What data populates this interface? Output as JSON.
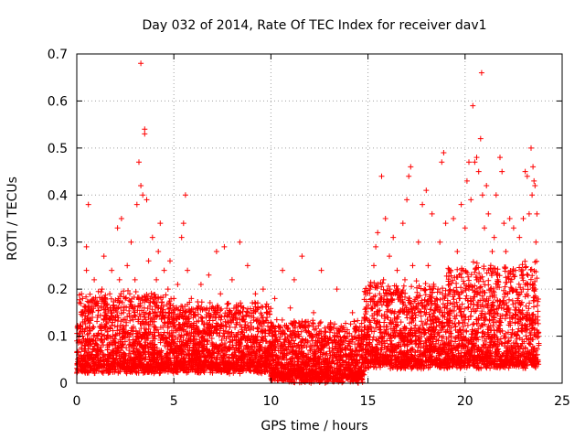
{
  "chart_data": {
    "type": "scatter",
    "title": "Day 032 of 2014, Rate Of TEC Index for receiver dav1",
    "xlabel": "GPS time / hours",
    "ylabel": "ROTI / TECUs",
    "xlim": [
      0,
      25
    ],
    "ylim": [
      0,
      0.7
    ],
    "xticks": [
      0,
      5,
      10,
      15,
      20,
      25
    ],
    "yticks": [
      0,
      0.1,
      0.2,
      0.3,
      0.4,
      0.5,
      0.6,
      0.7
    ],
    "xtick_labels": [
      "0",
      "5",
      "10",
      "15",
      "20",
      "25"
    ],
    "ytick_labels": [
      "0",
      "0.1",
      "0.2",
      "0.3",
      "0.4",
      "0.5",
      "0.6",
      "0.7"
    ],
    "grid": true,
    "marker": "+",
    "color": "#ff0000",
    "series": [
      {
        "name": "dav1",
        "points": [
          [
            0.1,
            0.06
          ],
          [
            0.2,
            0.12
          ],
          [
            0.3,
            0.18
          ],
          [
            0.4,
            0.08
          ],
          [
            0.5,
            0.24
          ],
          [
            0.5,
            0.29
          ],
          [
            0.6,
            0.38
          ],
          [
            0.7,
            0.15
          ],
          [
            0.8,
            0.05
          ],
          [
            0.9,
            0.22
          ],
          [
            1.0,
            0.1
          ],
          [
            1.1,
            0.17
          ],
          [
            1.2,
            0.07
          ],
          [
            1.3,
            0.2
          ],
          [
            1.4,
            0.27
          ],
          [
            1.5,
            0.12
          ],
          [
            1.6,
            0.06
          ],
          [
            1.7,
            0.19
          ],
          [
            1.8,
            0.24
          ],
          [
            1.9,
            0.09
          ],
          [
            2.0,
            0.14
          ],
          [
            2.1,
            0.33
          ],
          [
            2.2,
            0.22
          ],
          [
            2.3,
            0.35
          ],
          [
            2.4,
            0.11
          ],
          [
            2.5,
            0.18
          ],
          [
            2.6,
            0.25
          ],
          [
            2.7,
            0.07
          ],
          [
            2.8,
            0.3
          ],
          [
            2.9,
            0.16
          ],
          [
            3.0,
            0.22
          ],
          [
            3.1,
            0.38
          ],
          [
            3.2,
            0.47
          ],
          [
            3.3,
            0.68
          ],
          [
            3.3,
            0.42
          ],
          [
            3.4,
            0.4
          ],
          [
            3.5,
            0.54
          ],
          [
            3.5,
            0.53
          ],
          [
            3.6,
            0.39
          ],
          [
            3.7,
            0.26
          ],
          [
            3.8,
            0.18
          ],
          [
            3.9,
            0.31
          ],
          [
            4.0,
            0.12
          ],
          [
            4.1,
            0.22
          ],
          [
            4.2,
            0.28
          ],
          [
            4.3,
            0.34
          ],
          [
            4.4,
            0.15
          ],
          [
            4.5,
            0.24
          ],
          [
            4.6,
            0.09
          ],
          [
            4.7,
            0.2
          ],
          [
            4.8,
            0.26
          ],
          [
            4.9,
            0.13
          ],
          [
            5.0,
            0.18
          ],
          [
            5.1,
            0.08
          ],
          [
            5.2,
            0.21
          ],
          [
            5.3,
            0.14
          ],
          [
            5.4,
            0.31
          ],
          [
            5.5,
            0.34
          ],
          [
            5.6,
            0.4
          ],
          [
            5.7,
            0.24
          ],
          [
            5.8,
            0.12
          ],
          [
            5.9,
            0.18
          ],
          [
            6.0,
            0.09
          ],
          [
            6.2,
            0.16
          ],
          [
            6.4,
            0.21
          ],
          [
            6.6,
            0.11
          ],
          [
            6.8,
            0.23
          ],
          [
            7.0,
            0.07
          ],
          [
            7.2,
            0.28
          ],
          [
            7.4,
            0.19
          ],
          [
            7.6,
            0.29
          ],
          [
            7.8,
            0.13
          ],
          [
            8.0,
            0.22
          ],
          [
            8.2,
            0.09
          ],
          [
            8.4,
            0.3
          ],
          [
            8.6,
            0.16
          ],
          [
            8.8,
            0.25
          ],
          [
            9.0,
            0.12
          ],
          [
            9.2,
            0.19
          ],
          [
            9.4,
            0.07
          ],
          [
            9.6,
            0.2
          ],
          [
            9.8,
            0.14
          ],
          [
            10.0,
            0.08
          ],
          [
            10.2,
            0.18
          ],
          [
            10.4,
            0.11
          ],
          [
            10.6,
            0.24
          ],
          [
            10.8,
            0.06
          ],
          [
            11.0,
            0.16
          ],
          [
            11.2,
            0.22
          ],
          [
            11.4,
            0.1
          ],
          [
            11.6,
            0.27
          ],
          [
            11.8,
            0.13
          ],
          [
            12.0,
            0.05
          ],
          [
            12.2,
            0.15
          ],
          [
            12.4,
            0.09
          ],
          [
            12.6,
            0.24
          ],
          [
            12.8,
            0.04
          ],
          [
            13.0,
            0.12
          ],
          [
            13.2,
            0.07
          ],
          [
            13.4,
            0.2
          ],
          [
            13.6,
            0.03
          ],
          [
            13.8,
            0.1
          ],
          [
            14.0,
            0.06
          ],
          [
            14.2,
            0.15
          ],
          [
            14.4,
            0.02
          ],
          [
            14.6,
            0.08
          ],
          [
            14.8,
            0.14
          ],
          [
            15.0,
            0.1
          ],
          [
            15.1,
            0.2
          ],
          [
            15.2,
            0.16
          ],
          [
            15.3,
            0.25
          ],
          [
            15.4,
            0.29
          ],
          [
            15.5,
            0.32
          ],
          [
            15.6,
            0.12
          ],
          [
            15.7,
            0.44
          ],
          [
            15.8,
            0.22
          ],
          [
            15.9,
            0.35
          ],
          [
            16.0,
            0.14
          ],
          [
            16.1,
            0.27
          ],
          [
            16.2,
            0.09
          ],
          [
            16.3,
            0.31
          ],
          [
            16.4,
            0.19
          ],
          [
            16.5,
            0.24
          ],
          [
            16.6,
            0.15
          ],
          [
            16.8,
            0.34
          ],
          [
            16.9,
            0.22
          ],
          [
            17.0,
            0.39
          ],
          [
            17.1,
            0.44
          ],
          [
            17.2,
            0.46
          ],
          [
            17.3,
            0.25
          ],
          [
            17.4,
            0.15
          ],
          [
            17.6,
            0.3
          ],
          [
            17.8,
            0.38
          ],
          [
            17.9,
            0.2
          ],
          [
            18.0,
            0.41
          ],
          [
            18.1,
            0.25
          ],
          [
            18.3,
            0.36
          ],
          [
            18.5,
            0.16
          ],
          [
            18.7,
            0.3
          ],
          [
            18.8,
            0.47
          ],
          [
            18.9,
            0.49
          ],
          [
            19.0,
            0.34
          ],
          [
            19.2,
            0.21
          ],
          [
            19.4,
            0.35
          ],
          [
            19.5,
            0.12
          ],
          [
            19.6,
            0.28
          ],
          [
            19.8,
            0.38
          ],
          [
            19.9,
            0.24
          ],
          [
            20.0,
            0.33
          ],
          [
            20.1,
            0.43
          ],
          [
            20.2,
            0.47
          ],
          [
            20.3,
            0.39
          ],
          [
            20.4,
            0.59
          ],
          [
            20.5,
            0.47
          ],
          [
            20.6,
            0.48
          ],
          [
            20.7,
            0.45
          ],
          [
            20.8,
            0.52
          ],
          [
            20.85,
            0.66
          ],
          [
            20.9,
            0.4
          ],
          [
            21.0,
            0.33
          ],
          [
            21.1,
            0.42
          ],
          [
            21.2,
            0.36
          ],
          [
            21.4,
            0.28
          ],
          [
            21.5,
            0.31
          ],
          [
            21.6,
            0.4
          ],
          [
            21.8,
            0.48
          ],
          [
            21.9,
            0.45
          ],
          [
            22.0,
            0.34
          ],
          [
            22.1,
            0.28
          ],
          [
            22.3,
            0.35
          ],
          [
            22.5,
            0.33
          ],
          [
            22.6,
            0.24
          ],
          [
            22.8,
            0.31
          ],
          [
            23.0,
            0.35
          ],
          [
            23.1,
            0.45
          ],
          [
            23.2,
            0.44
          ],
          [
            23.3,
            0.36
          ],
          [
            23.4,
            0.5
          ],
          [
            23.45,
            0.4
          ],
          [
            23.5,
            0.46
          ],
          [
            23.55,
            0.43
          ],
          [
            23.6,
            0.42
          ],
          [
            23.65,
            0.3
          ],
          [
            23.7,
            0.36
          ],
          [
            23.6,
            0.2
          ],
          [
            23.2,
            0.15
          ],
          [
            22.7,
            0.18
          ],
          [
            22.2,
            0.19
          ],
          [
            21.7,
            0.21
          ],
          [
            21.3,
            0.2
          ],
          [
            20.6,
            0.22
          ],
          [
            20.2,
            0.2
          ],
          [
            19.7,
            0.18
          ],
          [
            19.1,
            0.17
          ],
          [
            18.6,
            0.2
          ],
          [
            18.2,
            0.14
          ],
          [
            17.7,
            0.17
          ],
          [
            17.2,
            0.17
          ],
          [
            16.7,
            0.13
          ],
          [
            16.2,
            0.15
          ],
          [
            15.6,
            0.19
          ],
          [
            15.1,
            0.13
          ],
          [
            14.5,
            0.09
          ],
          [
            14.0,
            0.04
          ],
          [
            13.3,
            0.06
          ],
          [
            12.5,
            0.05
          ],
          [
            11.7,
            0.08
          ],
          [
            10.9,
            0.09
          ],
          [
            10.1,
            0.1
          ],
          [
            9.3,
            0.1
          ],
          [
            8.5,
            0.11
          ],
          [
            7.7,
            0.12
          ],
          [
            6.9,
            0.12
          ],
          [
            6.1,
            0.11
          ],
          [
            5.3,
            0.12
          ],
          [
            4.5,
            0.14
          ],
          [
            3.7,
            0.14
          ],
          [
            2.9,
            0.11
          ],
          [
            2.1,
            0.12
          ],
          [
            1.3,
            0.1
          ],
          [
            0.4,
            0.11
          ],
          [
            0.8,
            0.14
          ],
          [
            1.6,
            0.13
          ],
          [
            2.4,
            0.15
          ],
          [
            3.2,
            0.18
          ],
          [
            4.0,
            0.17
          ],
          [
            4.8,
            0.16
          ],
          [
            5.6,
            0.15
          ],
          [
            6.4,
            0.14
          ],
          [
            7.2,
            0.15
          ],
          [
            8.0,
            0.14
          ],
          [
            8.8,
            0.15
          ],
          [
            9.6,
            0.13
          ],
          [
            10.4,
            0.12
          ],
          [
            11.2,
            0.13
          ],
          [
            12.0,
            0.1
          ],
          [
            12.8,
            0.08
          ],
          [
            13.6,
            0.07
          ],
          [
            14.4,
            0.06
          ],
          [
            15.2,
            0.11
          ],
          [
            16.0,
            0.12
          ],
          [
            16.8,
            0.1
          ],
          [
            17.6,
            0.11
          ],
          [
            18.4,
            0.12
          ],
          [
            19.2,
            0.13
          ],
          [
            20.0,
            0.14
          ],
          [
            20.8,
            0.12
          ],
          [
            21.6,
            0.13
          ],
          [
            22.4,
            0.14
          ],
          [
            23.2,
            0.12
          ]
        ]
      }
    ],
    "dense_band": {
      "description_values": "dense low-level scatter: hour ranges with typical ROTI range",
      "segments": [
        {
          "x_from": 0.0,
          "x_to": 5.0,
          "y_min": 0.02,
          "y_max": 0.18
        },
        {
          "x_from": 5.0,
          "x_to": 10.0,
          "y_min": 0.02,
          "y_max": 0.16
        },
        {
          "x_from": 10.0,
          "x_to": 14.8,
          "y_min": 0.0,
          "y_max": 0.12
        },
        {
          "x_from": 14.8,
          "x_to": 19.0,
          "y_min": 0.03,
          "y_max": 0.2
        },
        {
          "x_from": 19.0,
          "x_to": 23.8,
          "y_min": 0.03,
          "y_max": 0.24
        }
      ]
    }
  }
}
